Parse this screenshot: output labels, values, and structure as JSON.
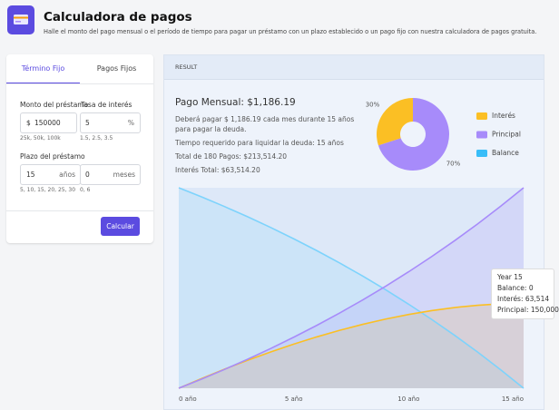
{
  "header": {
    "title": "Calculadora de pagos",
    "subtitle": "Halle el monto del pago mensual o el período de tiempo para pagar un préstamo con un plazo establecido o un pago fijo con nuestra calculadora de pagos gratuita."
  },
  "form": {
    "tabs": [
      "Término Fijo",
      "Pagos Fijos"
    ],
    "amount_label": "Monto del préstamo",
    "amount_prefix": "$",
    "amount_value": "150000",
    "amount_hints": "25k, 50k, 100k",
    "rate_label": "Tasa de interés",
    "rate_value": "5",
    "rate_suffix": "%",
    "rate_hints": "1.5, 2.5, 3.5",
    "term_label": "Plazo del préstamo",
    "years_value": "15",
    "years_unit": "años",
    "months_value": "0",
    "months_unit": "meses",
    "years_hints": "5, 10, 15, 20, 25, 30",
    "months_hints": "0, 6",
    "button": "Calcular"
  },
  "result": {
    "header": "RESULT",
    "monthly": "Pago Mensual: $1,186.19",
    "lines": [
      "Deberá pagar $ 1,186.19 cada mes durante 15 años",
      "para pagar la deuda.",
      "Tiempo requerido para liquidar la deuda: 15 años",
      "Total de 180 Pagos: $213,514.20",
      "Interés Total: $63,514.20"
    ]
  },
  "chart_data": [
    {
      "type": "pie",
      "categories": [
        "Interés",
        "Principal",
        "Balance"
      ],
      "values": [
        30,
        70,
        0
      ],
      "value_labels": [
        "30%",
        "70%",
        null
      ],
      "colors": [
        "#fbbf24",
        "#a78bfa",
        "#38bdf8"
      ],
      "legend": "right"
    },
    {
      "type": "area",
      "x": [
        0,
        1,
        2,
        3,
        4,
        5,
        6,
        7,
        8,
        9,
        10,
        11,
        12,
        13,
        14,
        15
      ],
      "series": [
        {
          "color": "#7dd3fc",
          "values": [
            150000,
            143109,
            135866,
            128252,
            120251,
            111836,
            102994,
            93699,
            83927,
            73656,
            62859,
            51509,
            39578,
            27038,
            13856,
            0
          ]
        },
        {
          "color": "#fbbf24",
          "values": [
            0,
            7343,
            14335,
            20955,
            27188,
            33007,
            38400,
            43339,
            47801,
            51765,
            55202,
            58086,
            60389,
            62084,
            63136,
            63514
          ]
        },
        {
          "color": "#a78bfa",
          "values": [
            0,
            6891,
            14134,
            21748,
            29749,
            38164,
            47006,
            56301,
            66073,
            76344,
            87141,
            98491,
            110422,
            122962,
            136144,
            150000
          ]
        }
      ],
      "xlim": [
        0,
        15
      ],
      "ylim": [
        0,
        150000
      ],
      "xticks": [
        {
          "value": 0,
          "label": "0 año"
        },
        {
          "value": 5,
          "label": "5 año"
        },
        {
          "value": 10,
          "label": "10 año"
        },
        {
          "value": 15,
          "label": "15 año"
        }
      ],
      "tooltip": {
        "title": "Year 15",
        "lines": [
          "Balance: 0",
          "Interés: 63,514",
          "Principal: 150,000"
        ]
      }
    }
  ]
}
